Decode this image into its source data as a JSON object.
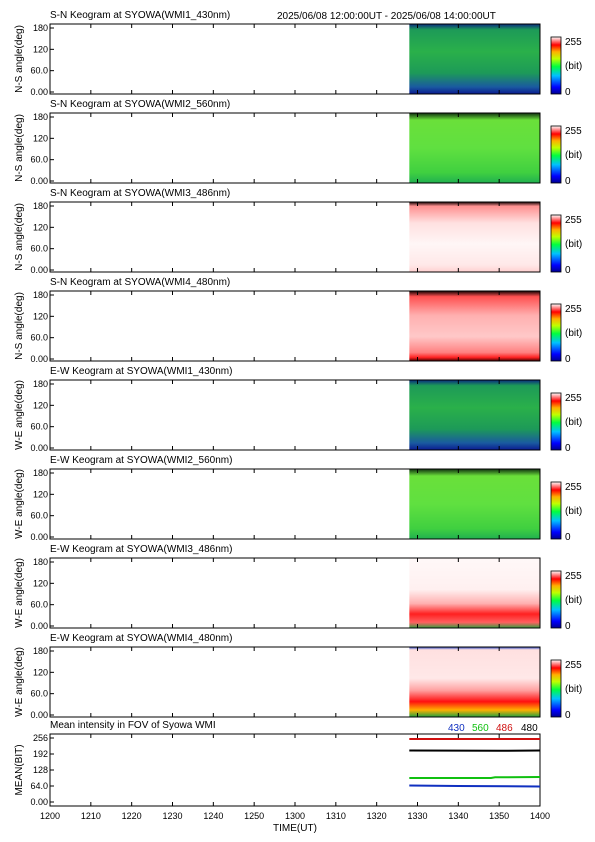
{
  "header": {
    "date_range": "2025/06/08 12:00:00UT - 2025/06/08 14:00:00UT"
  },
  "colors": {
    "wmi1_430": "#1f9d4a",
    "wmi2_560": "#5fe03a",
    "wmi3_486": "#ffd0d0",
    "wmi4_480": "#ff5a50",
    "line_430": "#1030c0",
    "line_560": "#10c010",
    "line_486": "#d01010",
    "line_480": "#000000"
  },
  "chart_data": [
    {
      "type": "heatmap",
      "title": "S-N Keogram at SYOWA(WMI1_430nm)",
      "ylabel": "N-S angle(deg)",
      "yticks": [
        "180",
        "120",
        "60.0",
        "0.00"
      ],
      "colorbar": {
        "max": "255",
        "unit": "(bit)",
        "min": "0"
      },
      "data_start": "13:28",
      "fill": "green-blue"
    },
    {
      "type": "heatmap",
      "title": "S-N Keogram at SYOWA(WMI2_560nm)",
      "ylabel": "N-S angle(deg)",
      "yticks": [
        "180",
        "120",
        "60.0",
        "0.00"
      ],
      "colorbar": {
        "max": "255",
        "unit": "(bit)",
        "min": "0"
      },
      "data_start": "13:28",
      "fill": "green"
    },
    {
      "type": "heatmap",
      "title": "S-N Keogram at SYOWA(WMI3_486nm)",
      "ylabel": "N-S angle(deg)",
      "yticks": [
        "180",
        "120",
        "60.0",
        "0.00"
      ],
      "colorbar": {
        "max": "255",
        "unit": "(bit)",
        "min": "0"
      },
      "data_start": "13:28",
      "fill": "pink-white"
    },
    {
      "type": "heatmap",
      "title": "S-N Keogram at SYOWA(WMI4_480nm)",
      "ylabel": "N-S angle(deg)",
      "yticks": [
        "180",
        "120",
        "60.0",
        "0.00"
      ],
      "colorbar": {
        "max": "255",
        "unit": "(bit)",
        "min": "0"
      },
      "data_start": "13:28",
      "fill": "red-pink"
    },
    {
      "type": "heatmap",
      "title": "E-W Keogram at SYOWA(WMI1_430nm)",
      "ylabel": "W-E angle(deg)",
      "yticks": [
        "180",
        "120",
        "60.0",
        "0.00"
      ],
      "colorbar": {
        "max": "255",
        "unit": "(bit)",
        "min": "0"
      },
      "data_start": "13:28",
      "fill": "green-blue"
    },
    {
      "type": "heatmap",
      "title": "E-W Keogram at SYOWA(WMI2_560nm)",
      "ylabel": "W-E angle(deg)",
      "yticks": [
        "180",
        "120",
        "60.0",
        "0.00"
      ],
      "colorbar": {
        "max": "255",
        "unit": "(bit)",
        "min": "0"
      },
      "data_start": "13:28",
      "fill": "green"
    },
    {
      "type": "heatmap",
      "title": "E-W Keogram at SYOWA(WMI3_486nm)",
      "ylabel": "W-E angle(deg)",
      "yticks": [
        "180",
        "120",
        "60.0",
        "0.00"
      ],
      "colorbar": {
        "max": "255",
        "unit": "(bit)",
        "min": "0"
      },
      "data_start": "13:28",
      "fill": "white-red-bottom"
    },
    {
      "type": "heatmap",
      "title": "E-W Keogram at SYOWA(WMI4_480nm)",
      "ylabel": "W-E angle(deg)",
      "yticks": [
        "180",
        "120",
        "60.0",
        "0.00"
      ],
      "colorbar": {
        "max": "255",
        "unit": "(bit)",
        "min": "0"
      },
      "data_start": "13:28",
      "fill": "white-red-bottom-strong"
    },
    {
      "type": "line",
      "title": "Mean intensity in FOV of Syowa WMI",
      "ylabel": "MEAN(BIT)",
      "xlabel": "TIME(UT)",
      "yticks": [
        "256",
        "192",
        "128",
        "64.0",
        "0.00"
      ],
      "ylim": [
        0,
        256
      ],
      "xlim": [
        "12:00",
        "14:00"
      ],
      "xticks": [
        "1200",
        "1210",
        "1220",
        "1230",
        "1240",
        "1250",
        "1300",
        "1310",
        "1320",
        "1330",
        "1340",
        "1350",
        "1400"
      ],
      "legend": [
        "430",
        "560",
        "486",
        "480"
      ],
      "series": [
        {
          "name": "430",
          "x": [
            "13:28",
            "13:40",
            "14:00"
          ],
          "values": [
            66,
            64,
            62
          ]
        },
        {
          "name": "560",
          "x": [
            "13:28",
            "13:48",
            "13:49",
            "14:00"
          ],
          "values": [
            96,
            96,
            99,
            100
          ]
        },
        {
          "name": "486",
          "x": [
            "13:28",
            "14:00"
          ],
          "values": [
            252,
            252
          ]
        },
        {
          "name": "480",
          "x": [
            "13:28",
            "13:50",
            "14:00"
          ],
          "values": [
            206,
            205,
            206
          ]
        }
      ]
    }
  ]
}
